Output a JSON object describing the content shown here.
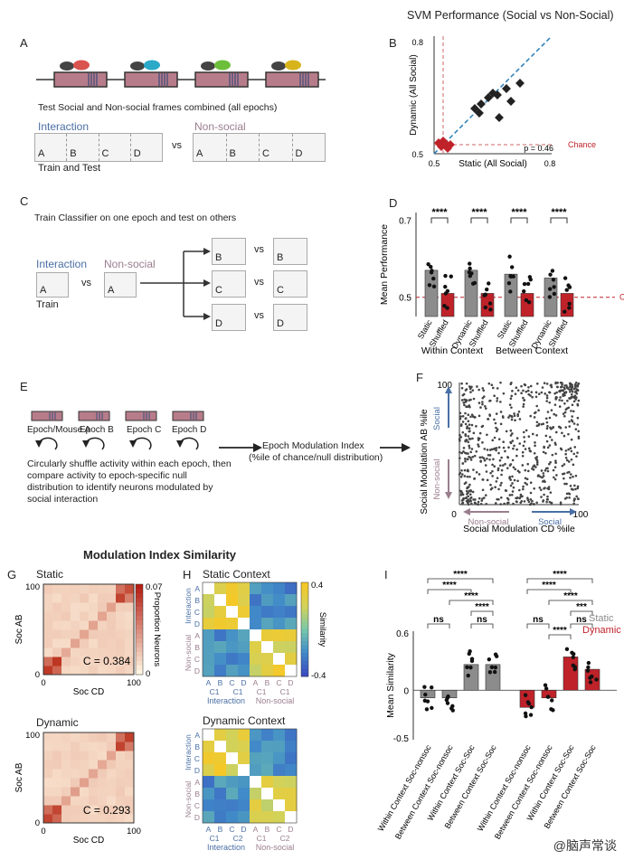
{
  "panelA": {
    "letter": "A",
    "caption": "Test Social and Non-social frames combined (all epochs)",
    "interaction_label": "Interaction",
    "nonsocial_label": "Non-social",
    "vs": "vs",
    "epochs": [
      "A",
      "B",
      "C",
      "D"
    ],
    "train_test": "Train and Test",
    "mouse_colors": [
      "#d9534f",
      "#2aa9c9",
      "#6cbf3a",
      "#d8b41c"
    ],
    "band_color": "#b77c8a"
  },
  "panelB": {
    "letter": "B",
    "title": "SVM Performance (Social vs Non-Social)",
    "ylabel": "Dynamic (All Social)",
    "xlabel": "Static (All Social)",
    "tick_lo": "0.5",
    "tick_hi": "0.8",
    "p_text": "p = 0.46",
    "chance": "Chance"
  },
  "panelC": {
    "letter": "C",
    "caption": "Train Classifier on one epoch and test on others",
    "interaction_label": "Interaction",
    "nonsocial_label": "Non-social",
    "vs": "vs",
    "train": "Train",
    "train_epoch": "A",
    "test_epochs": [
      "B",
      "C",
      "D"
    ]
  },
  "panelD": {
    "letter": "D",
    "ylabel": "Mean Performance",
    "tick_hi": "0.7",
    "tick_lo": "0.5",
    "chance": "Chance",
    "stars": "****",
    "group_labels": [
      "Within Context",
      "Between Context"
    ],
    "bar_labels": [
      [
        "Static",
        "Shuffled"
      ],
      [
        "Dynamic",
        "Shuffled"
      ],
      [
        "Static",
        "Shuffled"
      ],
      [
        "Dynamic",
        "Shuffled"
      ]
    ]
  },
  "panelE": {
    "letter": "E",
    "epochs": [
      "Epoch/Mouse A",
      "Epoch B",
      "Epoch C",
      "Epoch D"
    ],
    "text": "Circularly shuffle activity within each epoch, then compare activity to epoch-specific null distribution to identify neurons modulated by social interaction",
    "index_title": "Epoch Modulation Index",
    "index_sub": "(%ile of chance/null distribution)"
  },
  "panelF": {
    "letter": "F",
    "ylabel": "Social Modulation  AB %ile",
    "xlabel": "Social Modulation CD %ile",
    "social": "Social",
    "nonsocial": "Non-social",
    "tick_0": "0",
    "tick_100": "100"
  },
  "heading": "Modulation Index Similarity",
  "panelG": {
    "letter": "G",
    "static_title": "Static",
    "dynamic_title": "Dynamic",
    "ylabel": "Soc AB",
    "xlabel": "Soc CD",
    "tick_0": "0",
    "tick_100": "100",
    "c_static": "C = 0.384",
    "c_dynamic": "C = 0.293",
    "cbar_max": "0.07",
    "cbar_min": "0",
    "cbar_label": "Proportion Neurons"
  },
  "panelH": {
    "letter": "H",
    "static_title": "Static Context",
    "dynamic_title": "Dynamic Context",
    "rows": [
      "A",
      "B",
      "C",
      "D",
      "A",
      "B",
      "C",
      "D"
    ],
    "group_interaction": "Interaction",
    "group_nonsocial": "Non-social",
    "cols_static": [
      "A",
      "B",
      "C",
      "D",
      "A",
      "B",
      "C",
      "D"
    ],
    "cols_static_sub": [
      "C1",
      "C1",
      "C1",
      "C1"
    ],
    "cols_dynamic_sub": [
      "C1",
      "C2",
      "C1",
      "C2"
    ],
    "cbar_max": "0.4",
    "cbar_min": "-0.4",
    "cbar_label": "Similarity"
  },
  "panelI": {
    "letter": "I",
    "ylabel": "Mean Similarity",
    "tick_hi": "0.6",
    "tick_zero": "0",
    "tick_lo": "-0.5",
    "legend_static": "Static",
    "legend_dynamic": "Dynamic",
    "legend_static_color": "#8c8c8c",
    "legend_dynamic_color": "#c0222a",
    "categories": [
      "Within Context Soc-nonsoc",
      "Between Context Soc-nonsoc",
      "Within Context Soc-Soc",
      "Between Context Soc-Soc",
      "Within Context Soc-nonsoc",
      "Between Context Soc-nonsoc",
      "Within Context Soc-Soc",
      "Between Context Soc-Soc"
    ],
    "sig": [
      "****",
      "****",
      "****",
      "****",
      "ns",
      "ns",
      "****",
      "****",
      "****",
      "***",
      "ns",
      "ns",
      "****"
    ]
  },
  "watermark": "@脑声常谈"
}
